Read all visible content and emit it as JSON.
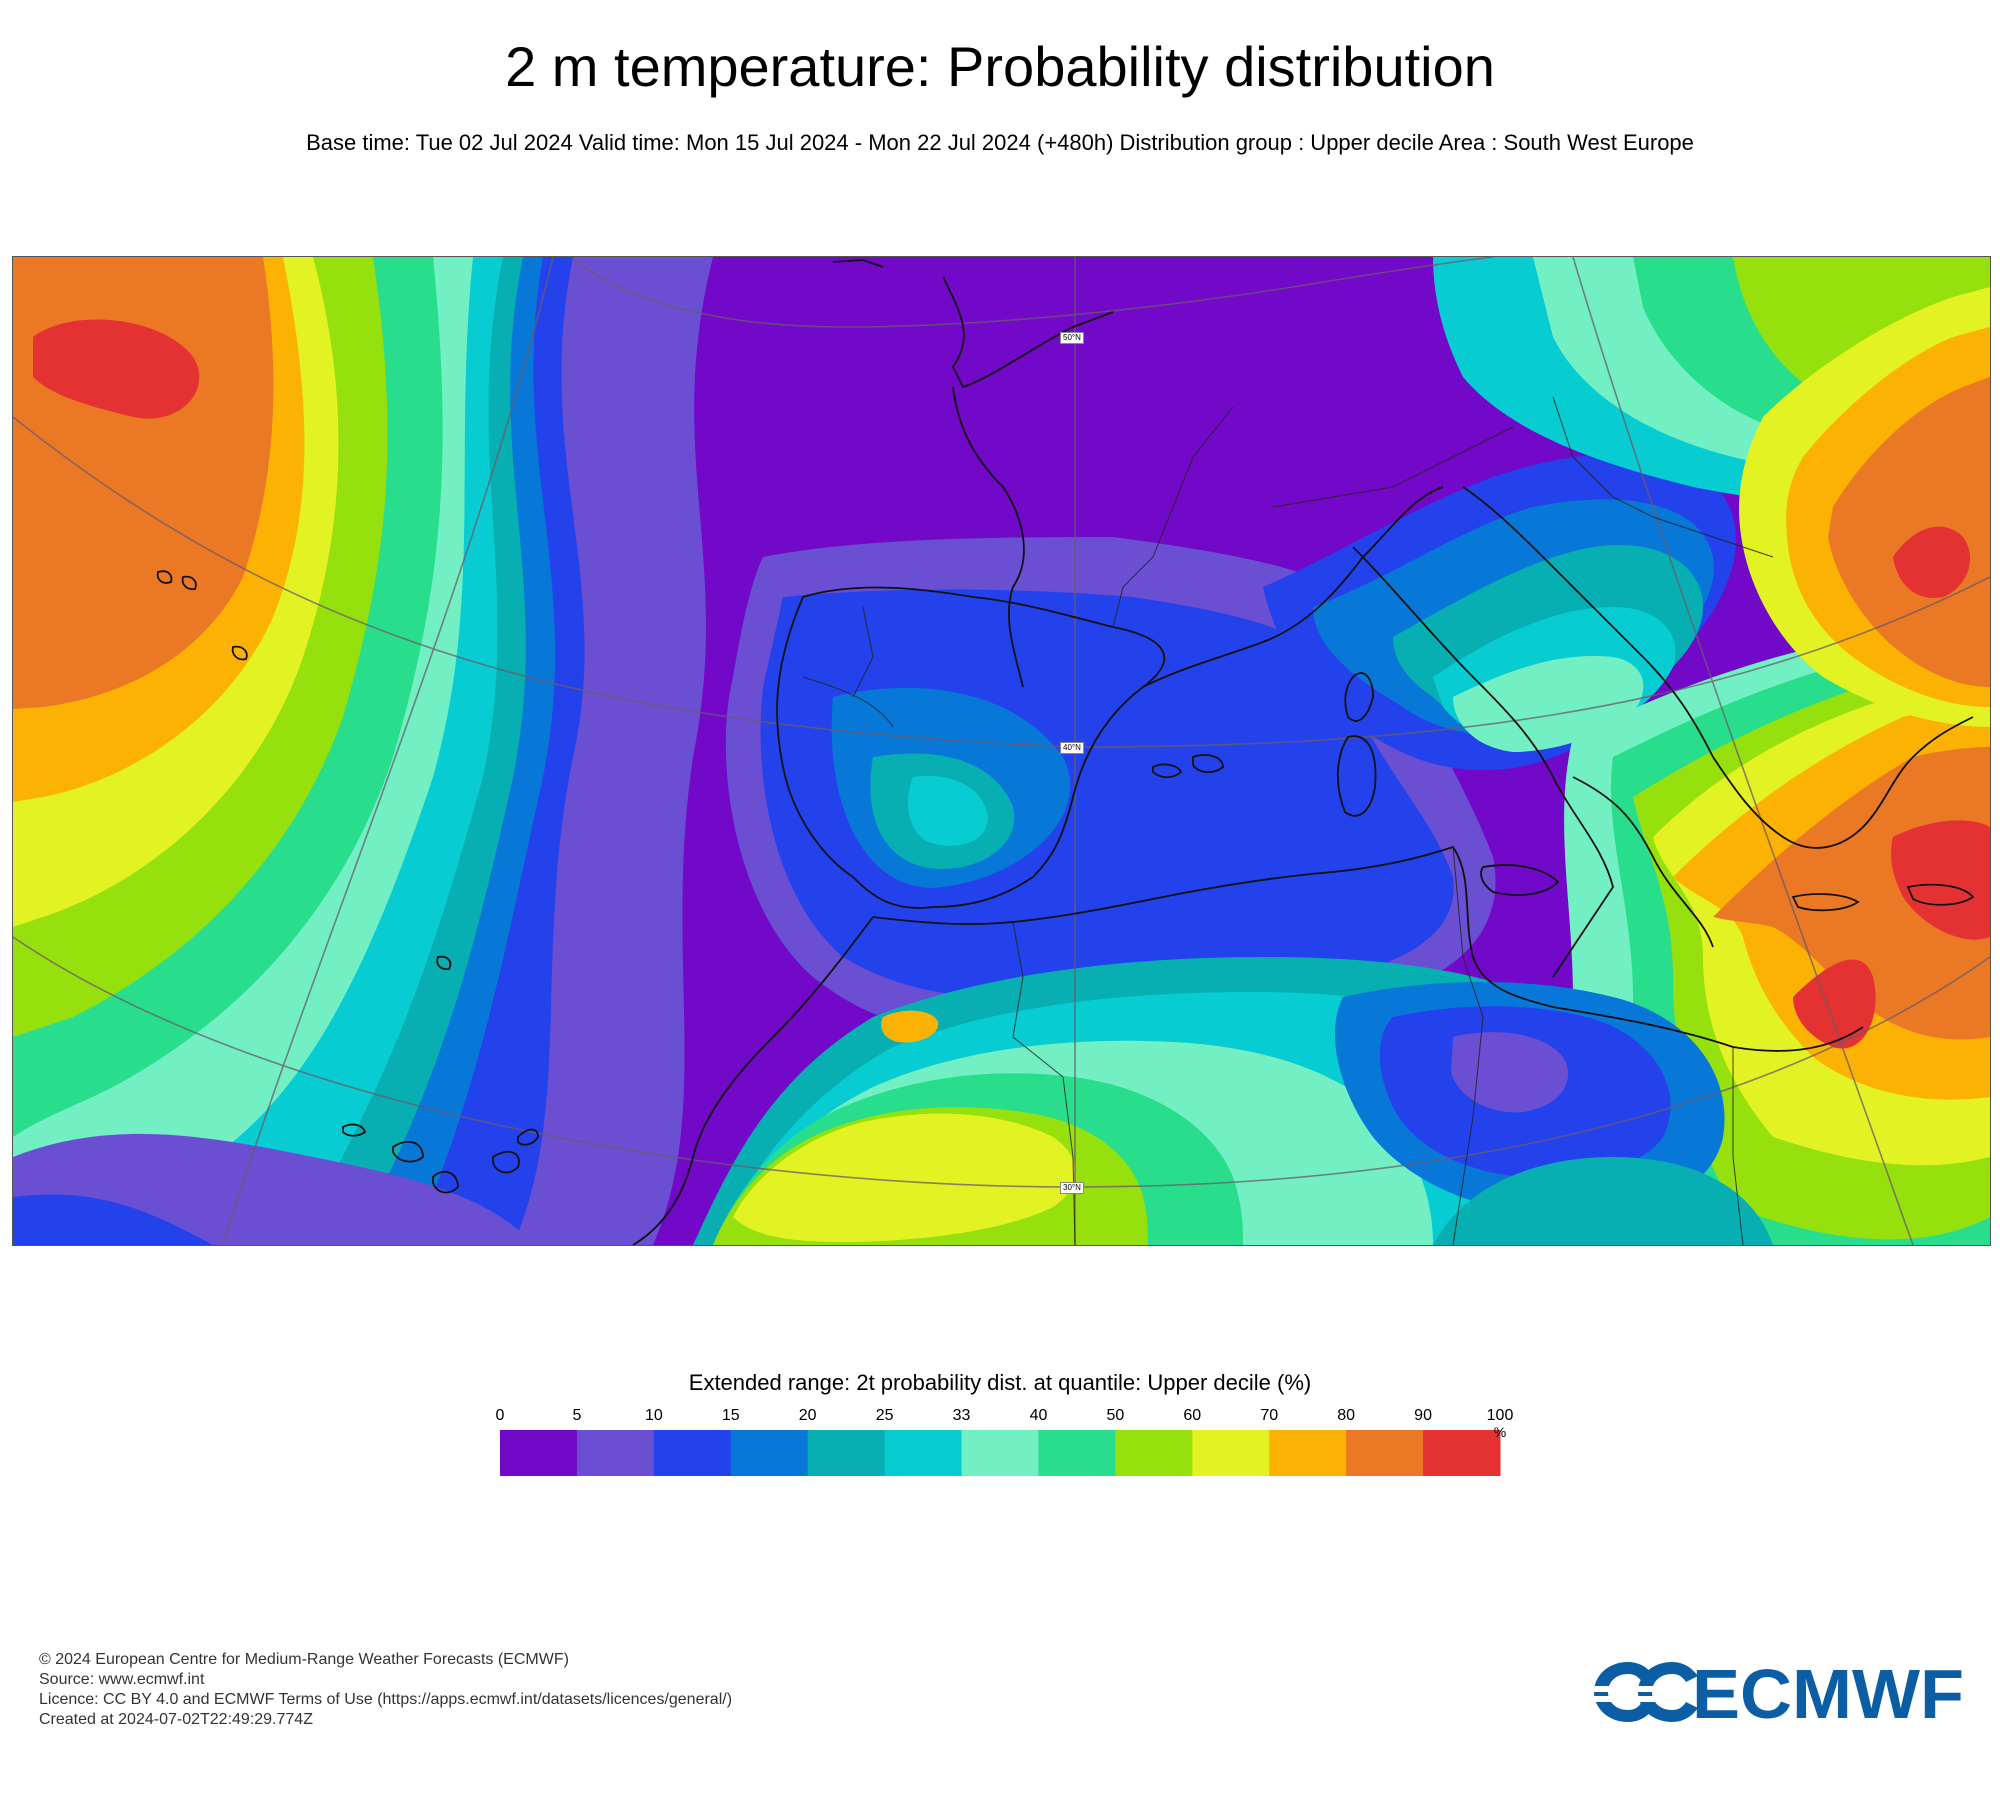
{
  "title": "2 m temperature: Probability distribution",
  "subtitle": "Base time: Tue 02 Jul 2024 Valid time: Mon 15 Jul 2024 - Mon 22 Jul 2024 (+480h) Distribution group : Upper decile Area : South West Europe",
  "map": {
    "lat_labels": [
      "50°N",
      "40°N",
      "30°N"
    ]
  },
  "legend": {
    "title": "Extended range: 2t probability dist. at quantile: Upper decile (%)",
    "ticks": [
      "0",
      "5",
      "10",
      "15",
      "20",
      "25",
      "33",
      "40",
      "50",
      "60",
      "70",
      "80",
      "90",
      "100"
    ],
    "unit": "%",
    "colors": [
      "#7209c8",
      "#6a4fd2",
      "#2342ec",
      "#0878d8",
      "#07aeb2",
      "#07ccd2",
      "#72f0c4",
      "#28de8c",
      "#96e00e",
      "#e2f222",
      "#fcb202",
      "#ea7824",
      "#e43232"
    ]
  },
  "footer": {
    "line1": "© 2024 European Centre for Medium-Range Weather Forecasts (ECMWF)",
    "line2": "Source: www.ecmwf.int",
    "line3": "Licence: CC BY 4.0 and ECMWF Terms of Use (https://apps.ecmwf.int/datasets/licences/general/)",
    "line4": "Created at 2024-07-02T22:49:29.774Z"
  },
  "logo_text": "ECMWF",
  "logo_color": "#0b5ea3"
}
